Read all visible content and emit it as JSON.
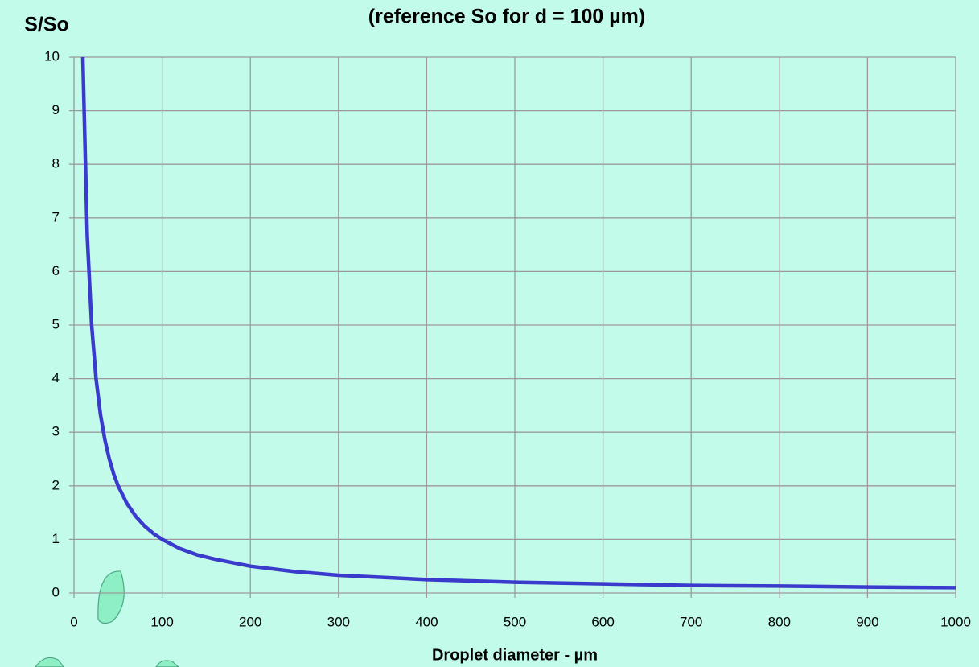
{
  "chart_data": {
    "type": "line",
    "title": "(reference So for d = 100 µm)",
    "y_label": "S/So",
    "x_label": "Droplet diameter - µm",
    "x": [
      10,
      15,
      20,
      25,
      30,
      35,
      40,
      45,
      50,
      60,
      70,
      80,
      90,
      100,
      120,
      140,
      160,
      200,
      250,
      300,
      400,
      500,
      600,
      700,
      800,
      900,
      1000
    ],
    "series": [
      {
        "name": "S/So",
        "color": "#3a3acc",
        "values": [
          10,
          6.67,
          5,
          4,
          3.33,
          2.86,
          2.5,
          2.22,
          2,
          1.67,
          1.43,
          1.25,
          1.11,
          1,
          0.83,
          0.71,
          0.63,
          0.5,
          0.4,
          0.33,
          0.25,
          0.2,
          0.17,
          0.14,
          0.13,
          0.11,
          0.1
        ]
      }
    ],
    "xlim": [
      0,
      1000
    ],
    "xticks": [
      0,
      100,
      200,
      300,
      400,
      500,
      600,
      700,
      800,
      900,
      1000
    ],
    "ylim": [
      0,
      10
    ],
    "yticks": [
      0,
      1,
      2,
      3,
      4,
      5,
      6,
      7,
      8,
      9,
      10
    ],
    "grid": true
  }
}
